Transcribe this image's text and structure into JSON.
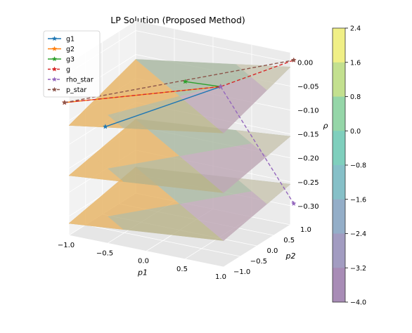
{
  "chart_data": {
    "type": "surface3d",
    "title": "LP Solution (Proposed Method)",
    "xlabel": "p1",
    "ylabel": "p2",
    "zlabel": "ρ",
    "x_ticks": [
      "−1.0",
      "−0.5",
      "0.0",
      "0.5",
      "1.0"
    ],
    "y_ticks": [
      "−1.0",
      "−0.5",
      "0.0",
      "0.5",
      "1.0"
    ],
    "z_ticks": [
      "0.00",
      "−0.05",
      "−0.10",
      "−0.15",
      "−0.20",
      "−0.25",
      "−0.30"
    ],
    "xlim": [
      -1.0,
      1.0
    ],
    "ylim": [
      -1.0,
      1.0
    ],
    "zlim": [
      -0.3,
      0.0
    ],
    "legend_position": "top-left",
    "series": [
      {
        "name": "g1",
        "style": "solid",
        "marker": "*",
        "color": "#1f77b4",
        "points": [
          [
            -0.55,
            -0.95,
            -0.1
          ],
          [
            0.4,
            0.3,
            -0.04
          ]
        ]
      },
      {
        "name": "g2",
        "style": "solid",
        "marker": "*",
        "color": "#ff7f0e",
        "points": [
          [
            -1.1,
            -0.9,
            -0.07
          ],
          [
            0.4,
            0.3,
            -0.04
          ]
        ]
      },
      {
        "name": "g3",
        "style": "solid",
        "marker": "*",
        "color": "#2ca02c",
        "points": [
          [
            0.05,
            0.05,
            -0.03
          ],
          [
            0.4,
            0.3,
            -0.04
          ]
        ]
      },
      {
        "name": "g",
        "style": "dashed",
        "marker": "*",
        "color": "#d62728",
        "points": [
          [
            -1.1,
            -0.9,
            -0.07
          ],
          [
            0.4,
            0.3,
            -0.04
          ],
          [
            1.0,
            1.1,
            0.0
          ]
        ]
      },
      {
        "name": "rho_star",
        "style": "dashed",
        "marker": "*",
        "color": "#9467bd",
        "points": [
          [
            0.4,
            0.3,
            -0.04
          ],
          [
            1.0,
            1.1,
            -0.3
          ]
        ]
      },
      {
        "name": "p_star",
        "style": "dashed",
        "marker": "*",
        "color": "#8c564b",
        "points": [
          [
            -1.1,
            -0.9,
            -0.07
          ],
          [
            1.0,
            1.1,
            0.0
          ]
        ]
      }
    ],
    "colorbar": {
      "ticks": [
        "2.4",
        "1.6",
        "0.8",
        "0.0",
        "−0.8",
        "−1.6",
        "−2.4",
        "−3.2",
        "−4.0"
      ],
      "range": [
        -4.0,
        2.4
      ],
      "band_colors_top_to_bottom": [
        "#f0ef86",
        "#c3e08f",
        "#95d6a8",
        "#7fcfbd",
        "#86c0c8",
        "#94aec8",
        "#a29cc1",
        "#a88cb6"
      ]
    },
    "surface_colors": [
      "#e8b465",
      "#b9b38a",
      "#aab9a2",
      "#bfa8b6",
      "#c9c6b1"
    ]
  }
}
